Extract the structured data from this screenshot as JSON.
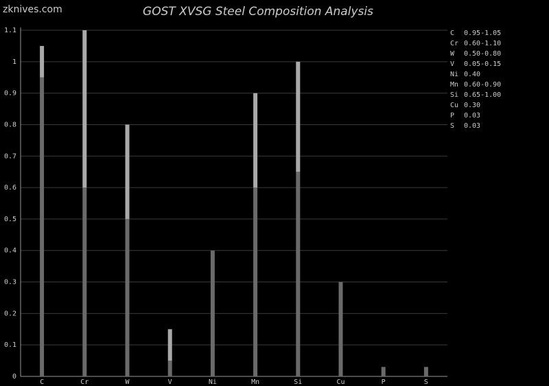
{
  "chart_data": {
    "type": "range-bar",
    "site": "zknives.com",
    "title": "GOST XVSG Steel Composition Analysis",
    "categories": [
      "C",
      "Cr",
      "W",
      "V",
      "Ni",
      "Mn",
      "Si",
      "Cu",
      "P",
      "S"
    ],
    "min": [
      0.95,
      0.6,
      0.5,
      0.05,
      null,
      0.6,
      0.65,
      null,
      null,
      null
    ],
    "max": [
      1.05,
      1.1,
      0.8,
      0.15,
      0.4,
      0.9,
      1.0,
      0.3,
      0.03,
      0.03
    ],
    "range_labels": [
      "0.95-1.05",
      "0.60-1.10",
      "0.50-0.80",
      "0.05-0.15",
      "0.40",
      "0.60-0.90",
      "0.65-1.00",
      "0.30",
      "0.03",
      "0.03"
    ],
    "ylim": [
      0,
      1.1
    ],
    "yticks": [
      0,
      0.1,
      0.2,
      0.3,
      0.4,
      0.5,
      0.6,
      0.7,
      0.8,
      0.9,
      1,
      1.1
    ],
    "grid": true,
    "colors": {
      "base": "#6a6a6a",
      "range": "#a9a9a9"
    }
  }
}
